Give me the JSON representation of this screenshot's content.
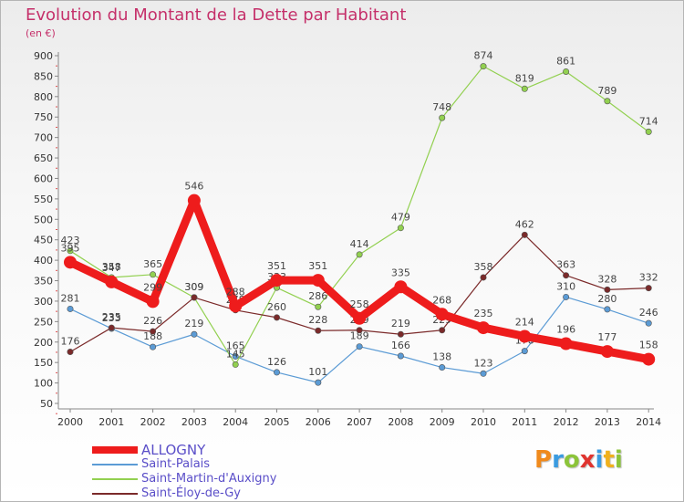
{
  "title": "Evolution du Montant de la Dette par Habitant",
  "unit_label": "(en €)",
  "logo": {
    "text": "Proxiti",
    "letters": [
      {
        "ch": "P",
        "color": "#f08a1c"
      },
      {
        "ch": "r",
        "color": "#3a9be0"
      },
      {
        "ch": "o",
        "color": "#8cc43a"
      },
      {
        "ch": "x",
        "color": "#e0342f"
      },
      {
        "ch": "i",
        "color": "#3a9be0"
      },
      {
        "ch": "t",
        "color": "#f0b01c"
      },
      {
        "ch": "i",
        "color": "#8cc43a"
      }
    ]
  },
  "chart_data": {
    "type": "line",
    "title": "Evolution du Montant de la Dette par Habitant",
    "ylabel": "(en €)",
    "xlabel": "",
    "categories": [
      "2000",
      "2001",
      "2002",
      "2003",
      "2004",
      "2005",
      "2006",
      "2007",
      "2008",
      "2009",
      "2010",
      "2011",
      "2012",
      "2013",
      "2014"
    ],
    "ylim": [
      50,
      900
    ],
    "yticks": [
      50,
      100,
      150,
      200,
      250,
      300,
      350,
      400,
      450,
      500,
      550,
      600,
      650,
      700,
      750,
      800,
      850,
      900
    ],
    "grid": false,
    "legend_position": "bottom-left",
    "series": [
      {
        "name": "ALLOGNY",
        "color": "#ee1c1c",
        "values": [
          395,
          347,
          299,
          546,
          288,
          351,
          351,
          258,
          335,
          268,
          235,
          214,
          196,
          177,
          158
        ]
      },
      {
        "name": "Saint-Palais",
        "color": "#5b9bd5",
        "values": [
          281,
          233,
          188,
          219,
          165,
          126,
          101,
          189,
          166,
          138,
          123,
          178,
          310,
          280,
          246
        ]
      },
      {
        "name": "Saint-Martin-d'Auxigny",
        "color": "#92d050",
        "values": [
          423,
          358,
          365,
          309,
          145,
          333,
          286,
          414,
          479,
          748,
          874,
          819,
          861,
          789,
          714
        ]
      },
      {
        "name": "Saint-Éloy-de-Gy",
        "color": "#7b2a2a",
        "values": [
          176,
          235,
          226,
          309,
          278,
          260,
          228,
          229,
          219,
          229,
          358,
          462,
          363,
          328,
          332
        ]
      }
    ]
  }
}
